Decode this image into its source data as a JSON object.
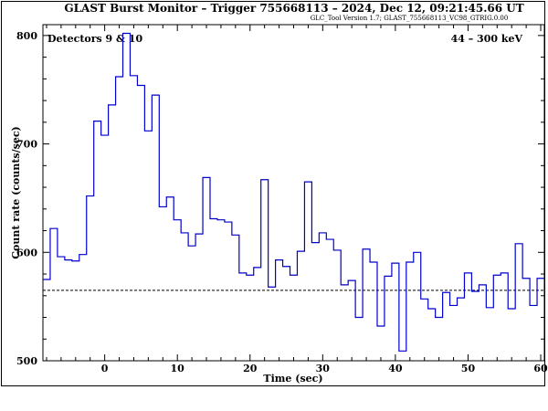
{
  "header": {
    "title": "GLAST Burst Monitor  –  Trigger 755668113  –  2024, Dec 12, 09:21:45.66 UT",
    "subtitle": "GLC_Tool Version 1.7; GLAST_755668113_VC98_GTRIG.0.00"
  },
  "panel": {
    "detectors": "Detectors 9 & 10",
    "energy": "44 – 300 keV"
  },
  "chart_data": {
    "type": "line",
    "step": true,
    "xlabel": "Time (sec)",
    "ylabel": "Count rate (counts/sec)",
    "xlim": [
      -8.5,
      60.5
    ],
    "ylim": [
      500,
      810
    ],
    "xticks": [
      0,
      10,
      20,
      30,
      40,
      50,
      60
    ],
    "yticks": [
      500,
      600,
      700,
      800
    ],
    "background_level": 565,
    "series": [
      {
        "color": "#0000cc",
        "bin_edges": [
          -8.5,
          -7.5,
          -6.5,
          -5.5,
          -4.5,
          -3.5,
          -2.5,
          -1.5,
          -0.5,
          0.5,
          1.5,
          2.5,
          3.5,
          4.5,
          5.5,
          6.5,
          7.5,
          8.5,
          9.5,
          10.5,
          11.5,
          12.5,
          13.5,
          14.5,
          15.5,
          16.5,
          17.5,
          18.5,
          19.5,
          20.5,
          21.5,
          22.5,
          23.5,
          24.5,
          25.5,
          26.5,
          27.5,
          28.5,
          29.5,
          30.5,
          31.5,
          32.5,
          33.5,
          34.5,
          35.5,
          36.5,
          37.5,
          38.5,
          39.5,
          40.5,
          41.5,
          42.5,
          43.5,
          44.5,
          45.5,
          46.5,
          47.5,
          48.5,
          49.5,
          50.5,
          51.5,
          52.5,
          53.5,
          54.5,
          55.5,
          56.5,
          57.5,
          58.5,
          59.5,
          60.5
        ],
        "values": [
          575,
          622,
          596,
          593,
          592,
          598,
          652,
          721,
          708,
          736,
          762,
          802,
          763,
          754,
          712,
          745,
          642,
          651,
          630,
          618,
          606,
          617,
          669,
          631,
          630,
          628,
          616,
          581,
          579,
          586,
          667,
          568,
          593,
          587,
          579,
          601,
          665,
          609,
          618,
          612,
          602,
          570,
          574,
          540,
          603,
          591,
          532,
          578,
          590,
          509,
          591,
          600,
          557,
          548,
          540,
          563,
          551,
          558,
          581,
          564,
          570,
          549,
          579,
          581,
          548,
          608,
          576,
          551,
          576
        ]
      }
    ]
  }
}
